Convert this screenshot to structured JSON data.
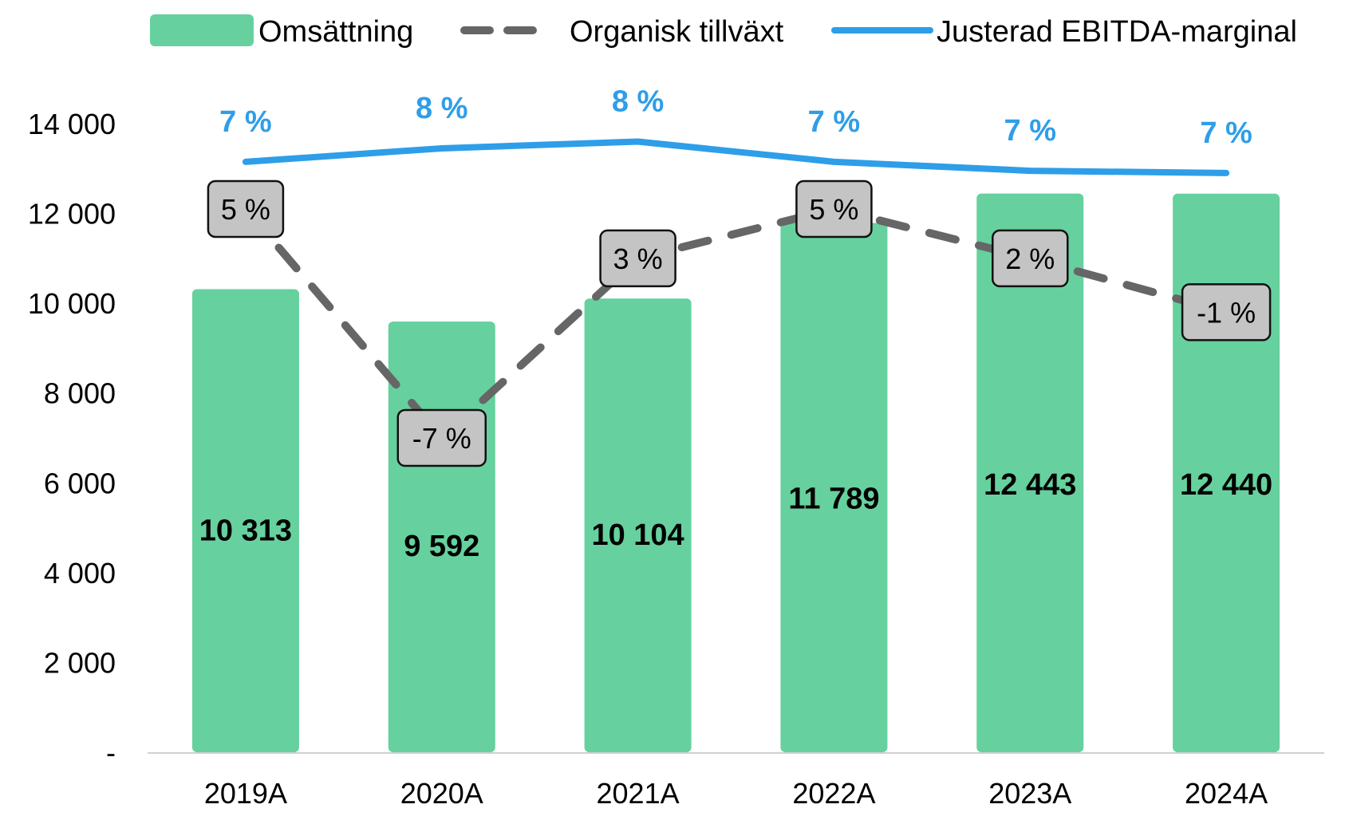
{
  "chart_data": {
    "type": "bar",
    "title": "",
    "xlabel": "",
    "ylabel": "",
    "categories": [
      "2019A",
      "2020A",
      "2021A",
      "2022A",
      "2023A",
      "2024A"
    ],
    "ylim": [
      0,
      14000
    ],
    "y_ticks": [
      {
        "value": 0,
        "label": "-"
      },
      {
        "value": 2000,
        "label": "2 000"
      },
      {
        "value": 4000,
        "label": "4 000"
      },
      {
        "value": 6000,
        "label": "6 000"
      },
      {
        "value": 8000,
        "label": "8 000"
      },
      {
        "value": 10000,
        "label": "10 000"
      },
      {
        "value": 12000,
        "label": "12 000"
      },
      {
        "value": 14000,
        "label": "14 000"
      }
    ],
    "legend_position": "top",
    "series": [
      {
        "name": "Omsättning",
        "type": "bar",
        "color": "#66d19e",
        "values": [
          10313,
          9592,
          10104,
          11789,
          12443,
          12440
        ],
        "labels": [
          "10 313",
          "9 592",
          "10 104",
          "11 789",
          "12 443",
          "12 440"
        ]
      },
      {
        "name": "Organisk tillväxt",
        "type": "line-dashed",
        "color": "#666666",
        "values_pct": [
          5,
          -7,
          3,
          5,
          2,
          -1
        ],
        "plot_values": [
          12100,
          7000,
          11000,
          12100,
          11000,
          9800
        ],
        "labels": [
          "5 %",
          "-7 %",
          "3 %",
          "5 %",
          "2 %",
          "-1 %"
        ]
      },
      {
        "name": "Justerad EBITDA-marginal",
        "type": "line",
        "color": "#2e9ee8",
        "values_pct": [
          7,
          8,
          8,
          7,
          7,
          7
        ],
        "plot_values": [
          13150,
          13450,
          13600,
          13150,
          12950,
          12900
        ],
        "labels": [
          "7 %",
          "8 %",
          "8 %",
          "7 %",
          "7 %",
          "7 %"
        ]
      }
    ]
  }
}
